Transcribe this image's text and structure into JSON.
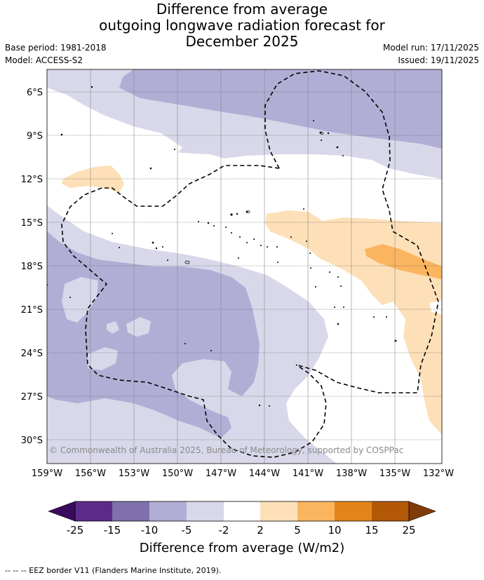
{
  "title": {
    "line1": "Difference from average",
    "line2": "outgoing longwave radiation forecast for",
    "line3": "December 2025"
  },
  "meta": {
    "base_period": "Base period: 1981-2018",
    "model": "Model: ACCESS-S2",
    "model_run": "Model run: 17/11/2025",
    "issued": "Issued: 19/11/2025"
  },
  "map": {
    "lat_labels": [
      "6°S",
      "9°S",
      "12°S",
      "15°S",
      "18°S",
      "21°S",
      "24°S",
      "27°S",
      "30°S"
    ],
    "lon_labels": [
      "159°W",
      "156°W",
      "153°W",
      "150°W",
      "147°W",
      "144°W",
      "141°W",
      "138°W",
      "135°W",
      "132°W"
    ],
    "copyright": "© Commonwealth of Australia 2025, Bureau of Meteorology, supported by COSPPac"
  },
  "colorbar": {
    "label": "Difference from average (W/m2)",
    "ticks": [
      "-25",
      "-15",
      "-10",
      "-5",
      "-2",
      "2",
      "5",
      "10",
      "15",
      "25"
    ],
    "colors": {
      "below_min": "#3a0a5c",
      "bins": [
        "#5b2a8a",
        "#7f70ad",
        "#b1aed5",
        "#d8d8ea",
        "#ffffff",
        "#fde0b8",
        "#fbb55f",
        "#e48418",
        "#b35806"
      ],
      "above_max": "#7f3b08"
    }
  },
  "footer": "--  --  -- EEZ border V11 (Flanders Marine Institute, 2019)."
}
